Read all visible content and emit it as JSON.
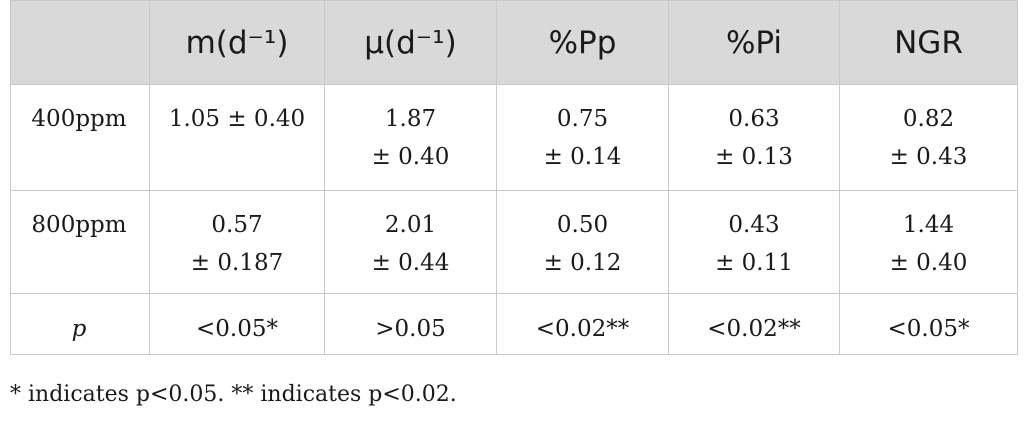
{
  "table": {
    "headers": [
      "",
      "m(d⁻¹)",
      "μ(d⁻¹)",
      "%Pp",
      "%Pi",
      "NGR"
    ],
    "rows": [
      {
        "label": "400ppm",
        "cells": [
          {
            "value": "1.05 ± 0.40",
            "error": ""
          },
          {
            "value": "1.87",
            "error": "± 0.40"
          },
          {
            "value": "0.75",
            "error": "± 0.14"
          },
          {
            "value": "0.63",
            "error": "± 0.13"
          },
          {
            "value": "0.82",
            "error": "± 0.43"
          }
        ]
      },
      {
        "label": "800ppm",
        "cells": [
          {
            "value": "0.57",
            "error": "± 0.187"
          },
          {
            "value": "2.01",
            "error": "± 0.44"
          },
          {
            "value": "0.50",
            "error": "± 0.12"
          },
          {
            "value": "0.43",
            "error": "± 0.11"
          },
          {
            "value": "1.44",
            "error": "± 0.40"
          }
        ]
      },
      {
        "label": "p",
        "cells": [
          {
            "value": "<0.05*",
            "error": ""
          },
          {
            "value": ">0.05",
            "error": ""
          },
          {
            "value": "<0.02**",
            "error": ""
          },
          {
            "value": "<0.02**",
            "error": ""
          },
          {
            "value": "<0.05*",
            "error": ""
          }
        ]
      }
    ]
  },
  "footnote": "* indicates p<0.05. ** indicates p<0.02."
}
